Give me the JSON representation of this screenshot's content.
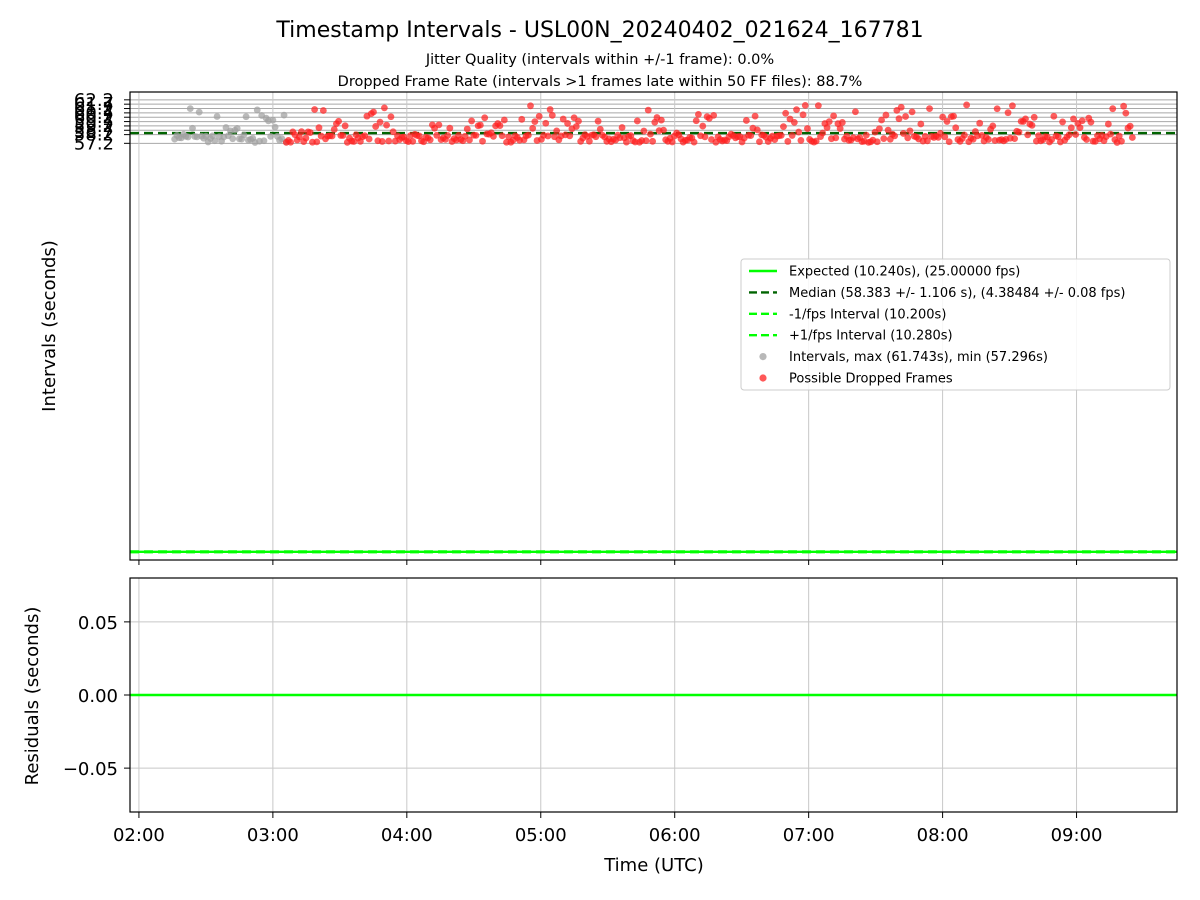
{
  "title": "Timestamp Intervals - USL00N_20240402_021624_167781",
  "subtitle1": "Jitter Quality (intervals within +/-1 frame): 0.0%",
  "subtitle2": "Dropped Frame Rate (intervals >1 frames late within 50 FF files): 88.7%",
  "colors": {
    "expected": "#00ff00",
    "median": "#006400",
    "fps_interval": "#00ff00",
    "intervals": "#a0a0a0",
    "dropped": "#ff2020",
    "grid": "#c8c8c8"
  },
  "chart_data": [
    {
      "type": "scatter",
      "panel": "top",
      "ylabel": "Intervals (seconds)",
      "xlabel": "",
      "xlim": [
        "01:56",
        "09:45"
      ],
      "ylim": [
        9.3,
        63.1
      ],
      "y_ticks": [
        "57.2",
        "58.2",
        "58.7",
        "59.2",
        "59.7",
        "60.2",
        "60.7",
        "61.2",
        "61.7",
        "62.2"
      ],
      "grid": true,
      "legend_position": "right",
      "lines": [
        {
          "name": "Expected (10.240s), (25.00000 fps)",
          "y": 10.24,
          "style": "solid",
          "color": "#00ff00"
        },
        {
          "name": "Median (58.383 +/- 1.106 s), (4.38484 +/- 0.08 fps)",
          "y": 58.383,
          "style": "dashed",
          "color": "#006400"
        },
        {
          "name": "-1/fps Interval (10.200s)",
          "y": 10.2,
          "style": "dashed",
          "color": "#00ff00"
        },
        {
          "name": "+1/fps Interval (10.280s)",
          "y": 10.28,
          "style": "dashed",
          "color": "#00ff00"
        }
      ],
      "series": [
        {
          "name": "Intervals, max (61.743s), min (57.296s)",
          "kind": "intervals",
          "time_range": [
            "02:16",
            "03:06"
          ],
          "y_min": 57.296,
          "y_max": 61.743
        },
        {
          "name": "Possible Dropped Frames",
          "kind": "dropped",
          "time_range": [
            "03:06",
            "09:25"
          ],
          "y_min": 57.3,
          "y_max": 61.743
        }
      ]
    },
    {
      "type": "line",
      "panel": "bottom",
      "ylabel": "Residuals (seconds)",
      "xlabel": "Time (UTC)",
      "xlim": [
        "01:56",
        "09:45"
      ],
      "ylim": [
        -0.08,
        0.08
      ],
      "y_ticks": [
        "0.05",
        "0.00",
        "−0.05"
      ],
      "x_ticks": [
        "02:00",
        "03:00",
        "04:00",
        "05:00",
        "06:00",
        "07:00",
        "08:00",
        "09:00"
      ],
      "grid": true,
      "series": [
        {
          "name": "",
          "x": [
            "01:56",
            "09:45"
          ],
          "y": [
            0.0,
            0.0
          ],
          "color": "#00ff00"
        }
      ]
    }
  ]
}
